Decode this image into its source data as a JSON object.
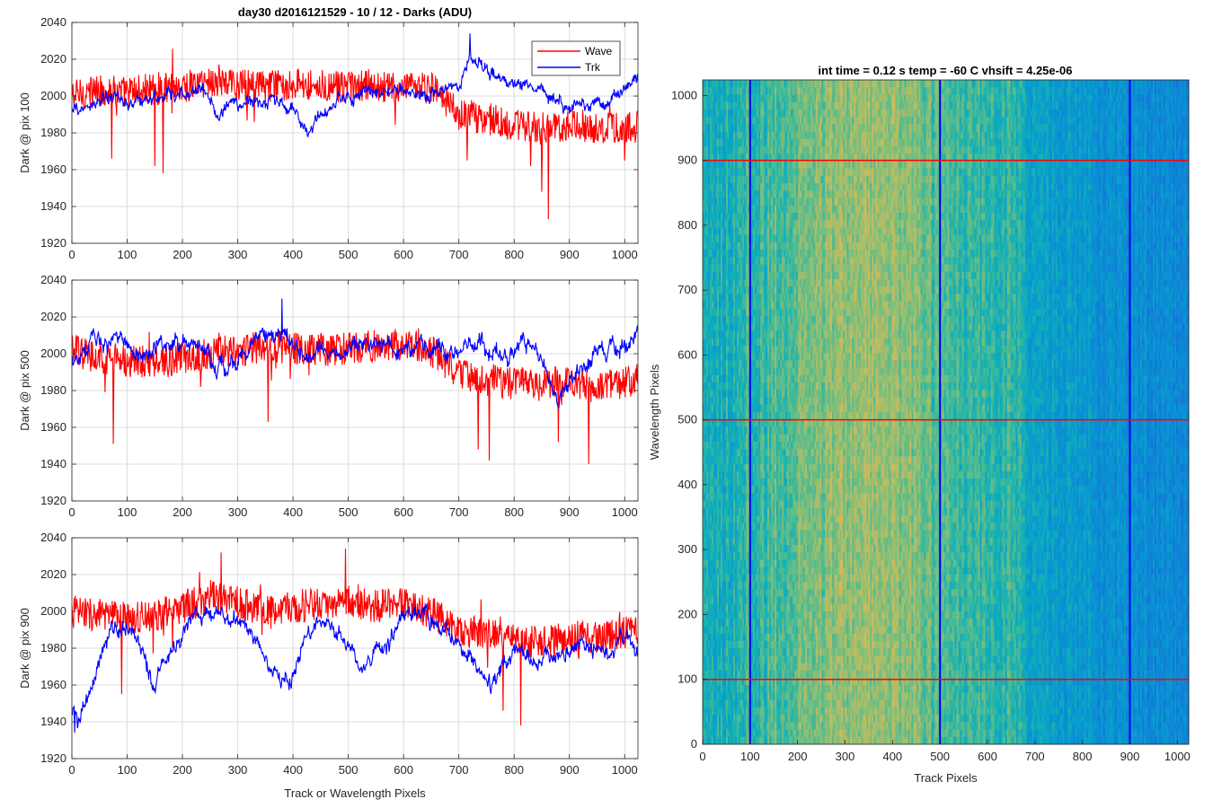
{
  "figure_title": "day30 d2016121529 - 10 / 12 - Darks (ADU)",
  "chart_data": [
    {
      "type": "line",
      "xlabel": "",
      "ylabel": "Dark @ pix 100",
      "xlim": [
        0,
        1024
      ],
      "ylim": [
        1920,
        2040
      ],
      "x_ticks": [
        0,
        100,
        200,
        300,
        400,
        500,
        600,
        700,
        800,
        900,
        1000
      ],
      "y_ticks": [
        1920,
        1940,
        1960,
        1980,
        2000,
        2020,
        2040
      ],
      "grid": true,
      "legend": "top-right",
      "series": [
        {
          "name": "Wave",
          "color": "#ff0000",
          "anchors_x": [
            0,
            50,
            100,
            150,
            200,
            250,
            300,
            350,
            400,
            450,
            500,
            550,
            600,
            650,
            700,
            750,
            800,
            850,
            900,
            950,
            1000,
            1024
          ],
          "anchors_y": [
            2000,
            2003,
            2002,
            2004,
            2005,
            2008,
            2006,
            2005,
            2007,
            2006,
            2004,
            2006,
            2003,
            2005,
            1990,
            1988,
            1984,
            1982,
            1985,
            1983,
            1982,
            1984
          ],
          "noise": 9,
          "spikes": [
            [
              72,
              1966
            ],
            [
              150,
              1962
            ],
            [
              165,
              1958
            ],
            [
              715,
              1965
            ],
            [
              830,
              1962
            ],
            [
              862,
              1933
            ],
            [
              850,
              1948
            ],
            [
              1000,
              1965
            ]
          ]
        },
        {
          "name": "Trk",
          "color": "#0000ff",
          "anchors_x": [
            0,
            30,
            60,
            100,
            150,
            200,
            240,
            260,
            300,
            350,
            400,
            430,
            450,
            500,
            550,
            600,
            650,
            700,
            720,
            760,
            800,
            850,
            900,
            950,
            1000,
            1024
          ],
          "anchors_y": [
            1990,
            1995,
            1998,
            1997,
            1998,
            2000,
            2005,
            1992,
            1995,
            1998,
            1993,
            1980,
            1988,
            2000,
            2001,
            2003,
            2002,
            2006,
            2022,
            2010,
            2008,
            2005,
            1995,
            1998,
            2003,
            2010
          ],
          "noise": 4,
          "spikes": [
            [
              720,
              2034
            ]
          ]
        }
      ]
    },
    {
      "type": "line",
      "xlabel": "",
      "ylabel": "Dark @ pix 500",
      "xlim": [
        0,
        1024
      ],
      "ylim": [
        1920,
        2040
      ],
      "x_ticks": [
        0,
        100,
        200,
        300,
        400,
        500,
        600,
        700,
        800,
        900,
        1000
      ],
      "y_ticks": [
        1920,
        1940,
        1960,
        1980,
        2000,
        2020,
        2040
      ],
      "grid": true,
      "series": [
        {
          "name": "Wave",
          "color": "#ff0000",
          "anchors_x": [
            0,
            50,
            100,
            150,
            200,
            250,
            300,
            350,
            400,
            450,
            500,
            550,
            600,
            650,
            700,
            750,
            800,
            850,
            900,
            950,
            1000,
            1024
          ],
          "anchors_y": [
            2002,
            1998,
            1996,
            1995,
            1998,
            2000,
            2002,
            2004,
            2003,
            2002,
            2003,
            2004,
            2005,
            2002,
            1988,
            1986,
            1984,
            1983,
            1985,
            1982,
            1984,
            1986
          ],
          "noise": 9,
          "spikes": [
            [
              75,
              1951
            ],
            [
              355,
              1963
            ],
            [
              735,
              1948
            ],
            [
              755,
              1942
            ],
            [
              880,
              1952
            ],
            [
              935,
              1940
            ]
          ]
        },
        {
          "name": "Trk",
          "color": "#0000ff",
          "anchors_x": [
            0,
            40,
            80,
            120,
            160,
            200,
            250,
            280,
            320,
            380,
            420,
            460,
            500,
            550,
            600,
            650,
            700,
            740,
            780,
            820,
            850,
            880,
            900,
            950,
            1000,
            1024
          ],
          "anchors_y": [
            1998,
            2005,
            2008,
            2000,
            2004,
            2008,
            2000,
            1990,
            2005,
            2010,
            2000,
            2000,
            2003,
            2006,
            2003,
            2005,
            2000,
            2005,
            2000,
            2008,
            1998,
            1980,
            1985,
            2000,
            2008,
            2010
          ],
          "noise": 5,
          "spikes": [
            [
              380,
              2030
            ]
          ]
        }
      ]
    },
    {
      "type": "line",
      "xlabel": "Track or Wavelength Pixels",
      "ylabel": "Dark @ pix 900",
      "xlim": [
        0,
        1024
      ],
      "ylim": [
        1920,
        2040
      ],
      "x_ticks": [
        0,
        100,
        200,
        300,
        400,
        500,
        600,
        700,
        800,
        900,
        1000
      ],
      "y_ticks": [
        1920,
        1940,
        1960,
        1980,
        2000,
        2020,
        2040
      ],
      "grid": true,
      "series": [
        {
          "name": "Wave",
          "color": "#ff0000",
          "anchors_x": [
            0,
            50,
            100,
            150,
            200,
            250,
            300,
            350,
            400,
            450,
            500,
            550,
            600,
            650,
            700,
            750,
            800,
            850,
            900,
            950,
            1000,
            1024
          ],
          "anchors_y": [
            2000,
            1998,
            1996,
            1998,
            2002,
            2008,
            2005,
            2000,
            2002,
            2004,
            2005,
            2003,
            2004,
            2000,
            1990,
            1988,
            1984,
            1983,
            1986,
            1986,
            1988,
            1990
          ],
          "noise": 9,
          "spikes": [
            [
              270,
              2032
            ],
            [
              495,
              2034
            ],
            [
              90,
              1955
            ],
            [
              780,
              1946
            ],
            [
              812,
              1938
            ]
          ]
        },
        {
          "name": "Trk",
          "color": "#0000ff",
          "anchors_x": [
            0,
            10,
            40,
            70,
            100,
            130,
            150,
            170,
            200,
            220,
            250,
            280,
            300,
            330,
            360,
            380,
            400,
            430,
            460,
            490,
            520,
            560,
            600,
            640,
            680,
            720,
            760,
            800,
            840,
            880,
            920,
            960,
            1000,
            1024
          ],
          "anchors_y": [
            1945,
            1942,
            1960,
            1990,
            1992,
            1975,
            1960,
            1972,
            1988,
            2000,
            2003,
            2000,
            1995,
            1985,
            1970,
            1962,
            1965,
            1992,
            1995,
            1985,
            1972,
            1975,
            1995,
            2003,
            1985,
            1975,
            1960,
            1980,
            1975,
            1975,
            1985,
            1980,
            1982,
            1978
          ],
          "noise": 5,
          "spikes": [
            [
              5,
              1934
            ]
          ]
        }
      ]
    },
    {
      "type": "heatmap",
      "title": "int time = 0.12 s    temp = -60 C    vhsift = 4.25e-06",
      "xlabel": "Track Pixels",
      "ylabel": "Wavelength Pixels",
      "xlim": [
        0,
        1024
      ],
      "ylim": [
        0,
        1024
      ],
      "x_ticks": [
        0,
        100,
        200,
        300,
        400,
        500,
        600,
        700,
        800,
        900,
        1000
      ],
      "y_ticks": [
        0,
        100,
        200,
        300,
        400,
        500,
        600,
        700,
        800,
        900,
        1000
      ],
      "colormap": "parula",
      "column_profile_x": [
        0,
        60,
        150,
        250,
        350,
        450,
        500,
        550,
        650,
        700,
        800,
        900,
        1024
      ],
      "column_profile_level": [
        0.5,
        0.56,
        0.62,
        0.7,
        0.74,
        0.7,
        0.62,
        0.6,
        0.58,
        0.48,
        0.42,
        0.38,
        0.35
      ],
      "vertical_lines": {
        "x": [
          100,
          500,
          900
        ],
        "color": "#0000ff"
      },
      "horizontal_lines": {
        "y": [
          100,
          500,
          900
        ],
        "color": "#ff0000"
      }
    }
  ]
}
